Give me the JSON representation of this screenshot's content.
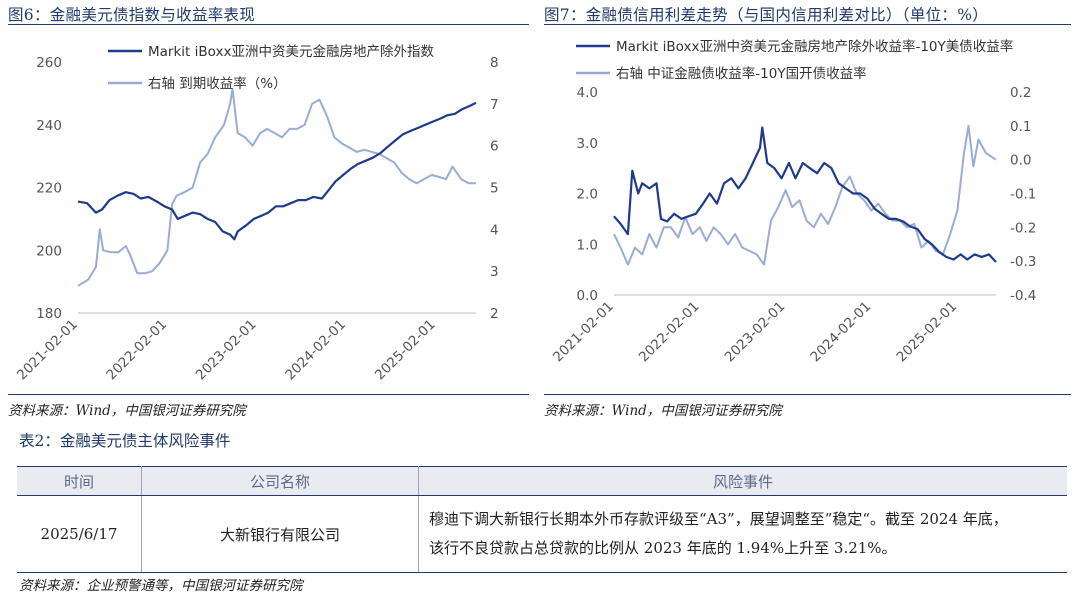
{
  "left_figure": {
    "title": "图6：金融美元债指数与收益率表现",
    "source": "资料来源：Wind，中国银河证券研究院"
  },
  "right_figure": {
    "title": "图7：金融债信用利差走势（与国内信用利差对比）（单位：%）",
    "source": "资料来源：Wind，中国银河证券研究院"
  },
  "table": {
    "title": "表2：金融美元债主体风险事件",
    "headers": [
      "时间",
      "公司名称",
      "风险事件"
    ],
    "rows": [
      {
        "date": "2025/6/17",
        "company": "大新银行有限公司",
        "event_line1": "穆迪下调大新银行长期本外币存款评级至“A3”，展望调整至”稳定“。截至 2024 年底，",
        "event_line2": "该行不良贷款占总贷款的比例从 2023 年底的 1.94%上升至 3.21%。"
      }
    ],
    "source": "资料来源：企业预警通等，中国银河证券研究院"
  },
  "colors": {
    "dark_series": "#1f3a8a",
    "light_series": "#99acd6",
    "title": "#1f3a6b"
  },
  "chart_data": [
    {
      "type": "line",
      "x_ticks": [
        "2021-02-01",
        "2022-02-01",
        "2023-02-01",
        "2024-02-01",
        "2025-02-01"
      ],
      "x_range": [
        "2021-02-01",
        "2025-07-15"
      ],
      "y_left": {
        "range": [
          180,
          260
        ],
        "ticks": [
          180,
          200,
          220,
          240,
          260
        ]
      },
      "y_right": {
        "range": [
          2,
          8
        ],
        "ticks": [
          2,
          3,
          4,
          5,
          6,
          7,
          8
        ]
      },
      "legend_position": "top",
      "grid": false,
      "series": [
        {
          "name": "Markit iBoxx亚洲中资美元金融房地产除外指数",
          "axis": "left",
          "color": "#1f3a8a",
          "points": [
            [
              "2021-02-01",
              215.5
            ],
            [
              "2021-03-10",
              215
            ],
            [
              "2021-04-15",
              212
            ],
            [
              "2021-05-10",
              213
            ],
            [
              "2021-06-10",
              216
            ],
            [
              "2021-07-15",
              217.5
            ],
            [
              "2021-08-15",
              218.5
            ],
            [
              "2021-09-15",
              218
            ],
            [
              "2021-10-15",
              216.5
            ],
            [
              "2021-11-15",
              217
            ],
            [
              "2021-12-20",
              215.5
            ],
            [
              "2022-01-20",
              214
            ],
            [
              "2022-02-20",
              213
            ],
            [
              "2022-03-15",
              210
            ],
            [
              "2022-04-15",
              211
            ],
            [
              "2022-05-15",
              212
            ],
            [
              "2022-06-15",
              211.5
            ],
            [
              "2022-07-15",
              210
            ],
            [
              "2022-08-15",
              209
            ],
            [
              "2022-09-15",
              206
            ],
            [
              "2022-10-15",
              205
            ],
            [
              "2022-11-01",
              203.5
            ],
            [
              "2022-11-15",
              206
            ],
            [
              "2022-12-20",
              208
            ],
            [
              "2023-01-20",
              210
            ],
            [
              "2023-02-20",
              211
            ],
            [
              "2023-03-20",
              212
            ],
            [
              "2023-04-20",
              214
            ],
            [
              "2023-05-20",
              214
            ],
            [
              "2023-06-20",
              215
            ],
            [
              "2023-07-20",
              216
            ],
            [
              "2023-08-20",
              216
            ],
            [
              "2023-09-20",
              217
            ],
            [
              "2023-10-25",
              216.5
            ],
            [
              "2023-11-20",
              219
            ],
            [
              "2023-12-20",
              222
            ],
            [
              "2024-01-20",
              224
            ],
            [
              "2024-02-20",
              226
            ],
            [
              "2024-03-20",
              227.5
            ],
            [
              "2024-04-20",
              228.5
            ],
            [
              "2024-05-20",
              229.5
            ],
            [
              "2024-06-20",
              231
            ],
            [
              "2024-07-20",
              233
            ],
            [
              "2024-08-20",
              235
            ],
            [
              "2024-09-20",
              237
            ],
            [
              "2024-10-20",
              238
            ],
            [
              "2024-11-20",
              239
            ],
            [
              "2024-12-20",
              240
            ],
            [
              "2025-01-20",
              241
            ],
            [
              "2025-02-20",
              242
            ],
            [
              "2025-03-20",
              243
            ],
            [
              "2025-04-20",
              243.5
            ],
            [
              "2025-05-20",
              245
            ],
            [
              "2025-06-20",
              246
            ],
            [
              "2025-07-15",
              247
            ]
          ]
        },
        {
          "name": "右轴 到期收益率（%）",
          "axis": "right",
          "color": "#99acd6",
          "points": [
            [
              "2021-02-01",
              2.65
            ],
            [
              "2021-03-15",
              2.8
            ],
            [
              "2021-04-15",
              3.1
            ],
            [
              "2021-05-01",
              4.0
            ],
            [
              "2021-05-15",
              3.5
            ],
            [
              "2021-06-15",
              3.45
            ],
            [
              "2021-07-15",
              3.45
            ],
            [
              "2021-08-15",
              3.6
            ],
            [
              "2021-09-01",
              3.4
            ],
            [
              "2021-10-01",
              2.95
            ],
            [
              "2021-11-01",
              2.95
            ],
            [
              "2021-12-01",
              3.0
            ],
            [
              "2022-01-01",
              3.2
            ],
            [
              "2022-02-01",
              3.5
            ],
            [
              "2022-02-20",
              4.6
            ],
            [
              "2022-03-10",
              4.8
            ],
            [
              "2022-04-15",
              4.9
            ],
            [
              "2022-05-15",
              5.0
            ],
            [
              "2022-06-15",
              5.6
            ],
            [
              "2022-07-15",
              5.8
            ],
            [
              "2022-08-15",
              6.2
            ],
            [
              "2022-09-20",
              6.5
            ],
            [
              "2022-10-15",
              7.0
            ],
            [
              "2022-10-25",
              7.35
            ],
            [
              "2022-11-15",
              6.3
            ],
            [
              "2022-12-15",
              6.2
            ],
            [
              "2023-01-15",
              6.0
            ],
            [
              "2023-02-15",
              6.3
            ],
            [
              "2023-03-15",
              6.4
            ],
            [
              "2023-04-15",
              6.3
            ],
            [
              "2023-05-15",
              6.2
            ],
            [
              "2023-06-15",
              6.4
            ],
            [
              "2023-07-15",
              6.4
            ],
            [
              "2023-08-15",
              6.5
            ],
            [
              "2023-09-15",
              7.0
            ],
            [
              "2023-10-15",
              7.1
            ],
            [
              "2023-11-15",
              6.7
            ],
            [
              "2023-12-15",
              6.2
            ],
            [
              "2024-01-15",
              6.05
            ],
            [
              "2024-02-15",
              5.95
            ],
            [
              "2024-03-15",
              5.85
            ],
            [
              "2024-04-15",
              5.9
            ],
            [
              "2024-05-15",
              5.85
            ],
            [
              "2024-06-15",
              5.8
            ],
            [
              "2024-07-15",
              5.7
            ],
            [
              "2024-08-15",
              5.6
            ],
            [
              "2024-09-15",
              5.35
            ],
            [
              "2024-10-15",
              5.2
            ],
            [
              "2024-11-15",
              5.1
            ],
            [
              "2024-12-15",
              5.2
            ],
            [
              "2025-01-15",
              5.3
            ],
            [
              "2025-02-15",
              5.25
            ],
            [
              "2025-03-15",
              5.2
            ],
            [
              "2025-04-10",
              5.5
            ],
            [
              "2025-05-15",
              5.2
            ],
            [
              "2025-06-15",
              5.1
            ],
            [
              "2025-07-15",
              5.1
            ]
          ]
        }
      ]
    },
    {
      "type": "line",
      "x_ticks": [
        "2021-02-01",
        "2022-02-01",
        "2023-02-01",
        "2024-02-01",
        "2025-02-01"
      ],
      "x_range": [
        "2021-02-01",
        "2025-07-15"
      ],
      "y_left": {
        "range": [
          0,
          4
        ],
        "ticks": [
          0.0,
          1.0,
          2.0,
          3.0,
          4.0
        ]
      },
      "y_right": {
        "range": [
          -0.4,
          0.2
        ],
        "ticks": [
          -0.4,
          -0.3,
          -0.2,
          -0.1,
          0.0,
          0.1,
          0.2
        ]
      },
      "legend_position": "top",
      "grid": false,
      "series": [
        {
          "name": "Markit iBoxx亚洲中资美元金融房地产除外收益率-10Y美债收益率",
          "axis": "left",
          "color": "#1f3a8a",
          "points": [
            [
              "2021-02-01",
              1.55
            ],
            [
              "2021-03-01",
              1.4
            ],
            [
              "2021-04-01",
              1.2
            ],
            [
              "2021-04-20",
              2.45
            ],
            [
              "2021-05-15",
              2.0
            ],
            [
              "2021-06-01",
              2.2
            ],
            [
              "2021-07-01",
              2.1
            ],
            [
              "2021-08-01",
              2.2
            ],
            [
              "2021-08-20",
              1.5
            ],
            [
              "2021-09-15",
              1.45
            ],
            [
              "2021-10-15",
              1.6
            ],
            [
              "2021-11-15",
              1.5
            ],
            [
              "2021-12-15",
              1.55
            ],
            [
              "2022-01-15",
              1.6
            ],
            [
              "2022-02-15",
              1.8
            ],
            [
              "2022-03-15",
              2.0
            ],
            [
              "2022-04-15",
              1.8
            ],
            [
              "2022-05-15",
              2.2
            ],
            [
              "2022-06-15",
              2.3
            ],
            [
              "2022-07-15",
              2.1
            ],
            [
              "2022-08-15",
              2.3
            ],
            [
              "2022-09-15",
              2.6
            ],
            [
              "2022-10-15",
              2.9
            ],
            [
              "2022-10-25",
              3.3
            ],
            [
              "2022-11-15",
              2.6
            ],
            [
              "2022-12-15",
              2.5
            ],
            [
              "2023-01-15",
              2.3
            ],
            [
              "2023-02-15",
              2.6
            ],
            [
              "2023-03-15",
              2.3
            ],
            [
              "2023-04-15",
              2.6
            ],
            [
              "2023-05-15",
              2.5
            ],
            [
              "2023-06-15",
              2.4
            ],
            [
              "2023-07-15",
              2.6
            ],
            [
              "2023-08-15",
              2.5
            ],
            [
              "2023-09-15",
              2.2
            ],
            [
              "2023-10-15",
              2.1
            ],
            [
              "2023-11-15",
              2.0
            ],
            [
              "2023-12-15",
              2.0
            ],
            [
              "2024-01-15",
              1.9
            ],
            [
              "2024-02-15",
              1.7
            ],
            [
              "2024-03-15",
              1.6
            ],
            [
              "2024-04-15",
              1.5
            ],
            [
              "2024-05-15",
              1.5
            ],
            [
              "2024-06-15",
              1.45
            ],
            [
              "2024-07-15",
              1.35
            ],
            [
              "2024-08-15",
              1.3
            ],
            [
              "2024-09-15",
              1.1
            ],
            [
              "2024-10-15",
              1.0
            ],
            [
              "2024-11-15",
              0.85
            ],
            [
              "2024-12-15",
              0.75
            ],
            [
              "2025-01-15",
              0.7
            ],
            [
              "2025-02-15",
              0.8
            ],
            [
              "2025-03-15",
              0.7
            ],
            [
              "2025-04-15",
              0.8
            ],
            [
              "2025-05-15",
              0.75
            ],
            [
              "2025-06-15",
              0.8
            ],
            [
              "2025-07-15",
              0.65
            ]
          ]
        },
        {
          "name": "右轴 中证金融债收益率-10Y国开债收益率",
          "axis": "right",
          "color": "#99acd6",
          "points": [
            [
              "2021-02-01",
              -0.22
            ],
            [
              "2021-03-01",
              -0.26
            ],
            [
              "2021-04-01",
              -0.31
            ],
            [
              "2021-05-01",
              -0.26
            ],
            [
              "2021-06-01",
              -0.28
            ],
            [
              "2021-07-01",
              -0.22
            ],
            [
              "2021-08-01",
              -0.26
            ],
            [
              "2021-09-01",
              -0.2
            ],
            [
              "2021-10-01",
              -0.2
            ],
            [
              "2021-11-01",
              -0.23
            ],
            [
              "2021-12-01",
              -0.17
            ],
            [
              "2022-01-01",
              -0.22
            ],
            [
              "2022-02-01",
              -0.2
            ],
            [
              "2022-03-01",
              -0.24
            ],
            [
              "2022-04-01",
              -0.2
            ],
            [
              "2022-05-01",
              -0.22
            ],
            [
              "2022-06-01",
              -0.25
            ],
            [
              "2022-07-01",
              -0.22
            ],
            [
              "2022-08-01",
              -0.26
            ],
            [
              "2022-09-01",
              -0.27
            ],
            [
              "2022-10-01",
              -0.28
            ],
            [
              "2022-11-01",
              -0.31
            ],
            [
              "2022-12-01",
              -0.18
            ],
            [
              "2023-01-01",
              -0.14
            ],
            [
              "2023-02-01",
              -0.09
            ],
            [
              "2023-03-01",
              -0.14
            ],
            [
              "2023-04-01",
              -0.12
            ],
            [
              "2023-05-01",
              -0.18
            ],
            [
              "2023-06-01",
              -0.2
            ],
            [
              "2023-07-01",
              -0.16
            ],
            [
              "2023-08-01",
              -0.19
            ],
            [
              "2023-09-01",
              -0.14
            ],
            [
              "2023-10-01",
              -0.08
            ],
            [
              "2023-11-01",
              -0.05
            ],
            [
              "2023-12-01",
              -0.1
            ],
            [
              "2024-01-01",
              -0.12
            ],
            [
              "2024-02-01",
              -0.15
            ],
            [
              "2024-03-01",
              -0.13
            ],
            [
              "2024-04-01",
              -0.16
            ],
            [
              "2024-05-01",
              -0.18
            ],
            [
              "2024-06-01",
              -0.18
            ],
            [
              "2024-07-01",
              -0.2
            ],
            [
              "2024-08-01",
              -0.19
            ],
            [
              "2024-09-01",
              -0.26
            ],
            [
              "2024-10-01",
              -0.24
            ],
            [
              "2024-11-01",
              -0.27
            ],
            [
              "2024-12-01",
              -0.28
            ],
            [
              "2025-01-01",
              -0.22
            ],
            [
              "2025-02-01",
              -0.15
            ],
            [
              "2025-03-01",
              0.02
            ],
            [
              "2025-03-20",
              0.1
            ],
            [
              "2025-04-10",
              -0.02
            ],
            [
              "2025-05-01",
              0.06
            ],
            [
              "2025-06-01",
              0.02
            ],
            [
              "2025-07-15",
              0.0
            ]
          ]
        }
      ]
    }
  ]
}
